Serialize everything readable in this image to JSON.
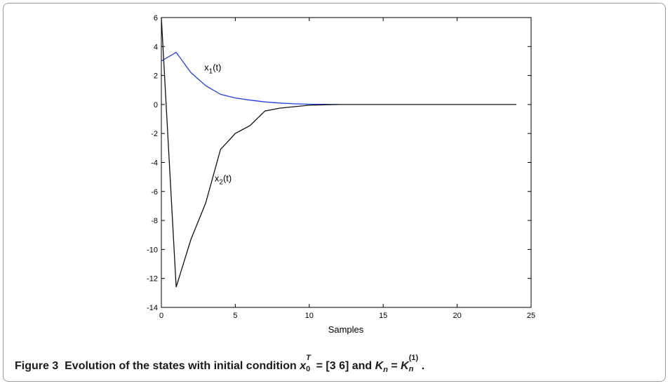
{
  "figure": {
    "caption_label": "Figure 3",
    "caption_text_1": "Evolution of the states with initial condition",
    "caption_var_x": "x",
    "caption_x_sup": "T",
    "caption_x_sub": "0",
    "caption_eq_1": " = [3 6] and ",
    "caption_var_K": "K",
    "caption_K_sub": "n",
    "caption_eq_2": " = ",
    "caption_var_K2": "K",
    "caption_K2_sub": "n",
    "caption_K2_sup": "(1)",
    "caption_end": "."
  },
  "chart_data": {
    "type": "line",
    "xlabel": "Samples",
    "ylabel": "",
    "title": "",
    "xlim": [
      0,
      25
    ],
    "ylim": [
      -14,
      6
    ],
    "xticks": [
      0,
      5,
      10,
      15,
      20,
      25
    ],
    "yticks": [
      6,
      4,
      2,
      0,
      -2,
      -4,
      -6,
      -8,
      -10,
      -12,
      -14
    ],
    "grid": false,
    "series": [
      {
        "name_base": "x",
        "name_sub": "1",
        "name_suffix": "(t)",
        "color": "#1f3fe0",
        "x": [
          0,
          1,
          2,
          3,
          4,
          5,
          6,
          7,
          8,
          9,
          10,
          11,
          12
        ],
        "y": [
          3,
          3.6,
          2.2,
          1.3,
          0.7,
          0.45,
          0.3,
          0.18,
          0.1,
          0.05,
          0.02,
          0.01,
          0
        ]
      },
      {
        "name_base": "x",
        "name_sub": "2",
        "name_suffix": "(t)",
        "color": "#111111",
        "x": [
          0,
          1,
          2,
          3,
          4,
          5,
          6,
          7,
          8,
          9,
          10,
          11,
          12,
          13,
          14,
          15,
          16,
          17,
          18,
          19,
          20,
          21,
          22,
          23,
          24
        ],
        "y": [
          6,
          -12.6,
          -9.3,
          -6.8,
          -3.1,
          -2.0,
          -1.45,
          -0.45,
          -0.25,
          -0.15,
          -0.05,
          -0.02,
          0,
          0,
          0,
          0,
          0,
          0,
          0,
          0,
          0,
          0,
          0,
          0,
          0
        ]
      }
    ]
  }
}
